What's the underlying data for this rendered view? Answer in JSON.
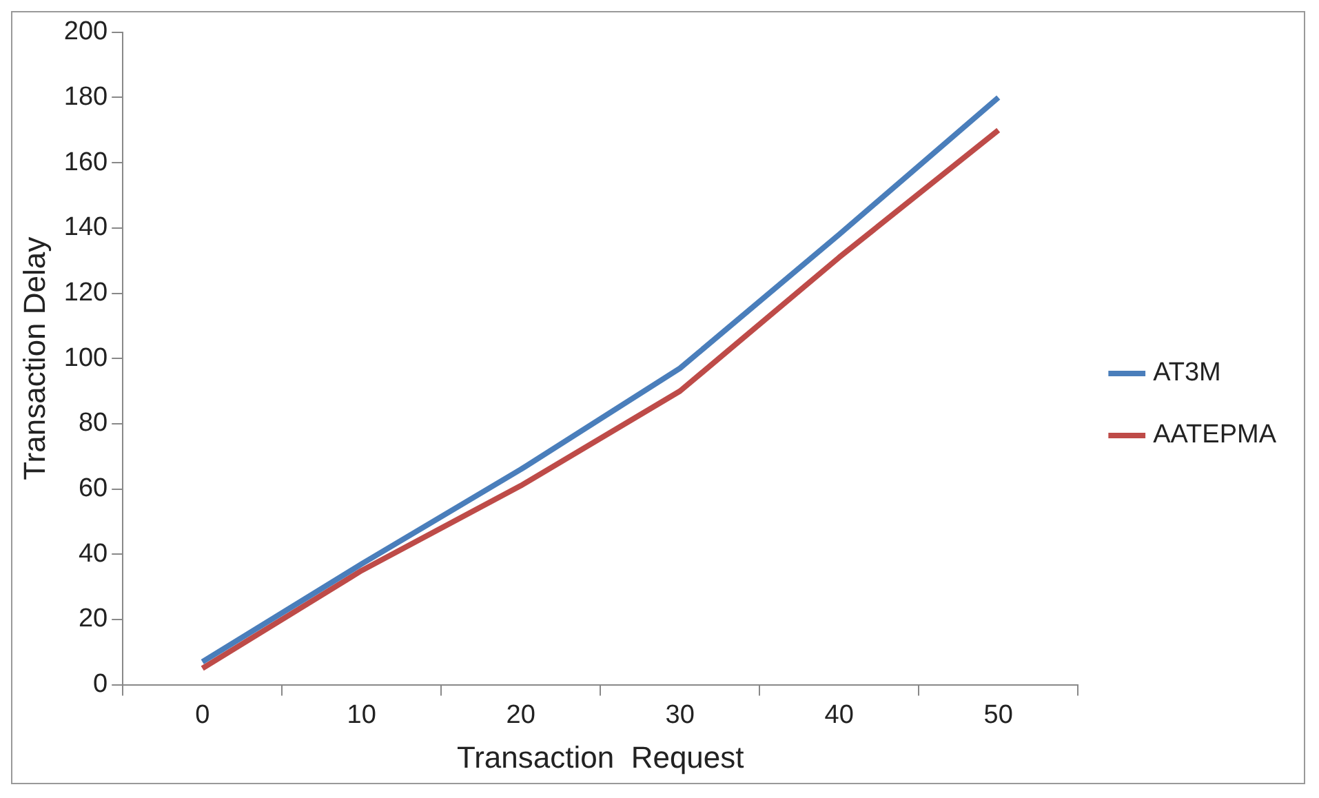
{
  "chart_data": {
    "type": "line",
    "xlabel": "Transaction  Request",
    "ylabel": "Transaction Delay",
    "categories": [
      "0",
      "10",
      "20",
      "30",
      "40",
      "50"
    ],
    "series": [
      {
        "name": "AT3M",
        "color": "#4a7ebb",
        "values": [
          7,
          37,
          66,
          97,
          138,
          180
        ]
      },
      {
        "name": "AATEPMA",
        "color": "#be4b48",
        "values": [
          5,
          35,
          61,
          90,
          131,
          170
        ]
      }
    ],
    "ylim": [
      0,
      200
    ],
    "yticks": [
      0,
      20,
      40,
      60,
      80,
      100,
      120,
      140,
      160,
      180,
      200
    ],
    "grid": false,
    "legend": "right",
    "marker": "none",
    "line_style": "solid"
  }
}
